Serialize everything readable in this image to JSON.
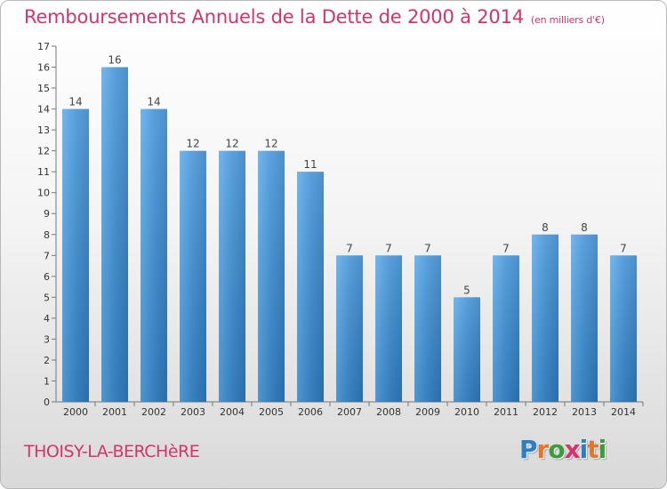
{
  "chart_data": {
    "type": "bar",
    "title": "Remboursements Annuels de la Dette de 2000 à 2014",
    "unit": "(en milliers d'€)",
    "categories": [
      "2000",
      "2001",
      "2002",
      "2003",
      "2004",
      "2005",
      "2006",
      "2007",
      "2008",
      "2009",
      "2010",
      "2011",
      "2012",
      "2013",
      "2014"
    ],
    "values": [
      14,
      16,
      14,
      12,
      12,
      12,
      11,
      7,
      7,
      7,
      5,
      7,
      8,
      8,
      7
    ],
    "ylim": [
      0,
      17
    ],
    "yticks": [
      0,
      1,
      2,
      3,
      4,
      5,
      6,
      7,
      8,
      9,
      10,
      11,
      12,
      13,
      14,
      15,
      16,
      17
    ],
    "grid": false,
    "bar_color": "#3d8fd6"
  },
  "footer": {
    "commune": "THOISY-LA-BERCHèRE",
    "logo_letters": [
      "P",
      "r",
      "o",
      "x",
      "i",
      "t",
      "i"
    ],
    "logo_colors": [
      "#2a7fc9",
      "#e8742a",
      "#3a9c3a",
      "#d6336c",
      "#2a7fc9",
      "#e8742a",
      "#3a9c3a"
    ]
  }
}
